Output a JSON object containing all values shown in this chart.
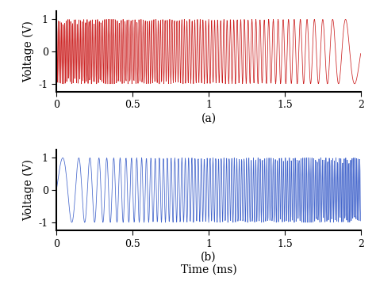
{
  "title_a": "(a)",
  "title_b": "(b)",
  "xlabel": "Time (ms)",
  "ylabel": "Voltage (V)",
  "xlim": [
    0,
    2
  ],
  "ylim": [
    -1.25,
    1.25
  ],
  "yticks": [
    -1,
    0,
    1
  ],
  "xticks": [
    0,
    0.5,
    1,
    1.5,
    2
  ],
  "color_a": "#cc2222",
  "color_b": "#4466cc",
  "f0_a_khz": 100,
  "f1_a_khz": 5,
  "f0_b_khz": 5,
  "f1_b_khz": 100,
  "duration_ms": 2.0,
  "sample_rate": 500000,
  "linewidth": 0.55,
  "figsize": [
    4.74,
    3.55
  ],
  "dpi": 100,
  "background_color": "#ffffff",
  "tick_fontsize": 9,
  "label_fontsize": 10,
  "sublabel_fontsize": 10,
  "xlabel_fontsize": 11,
  "spine_linewidth": 1.5
}
